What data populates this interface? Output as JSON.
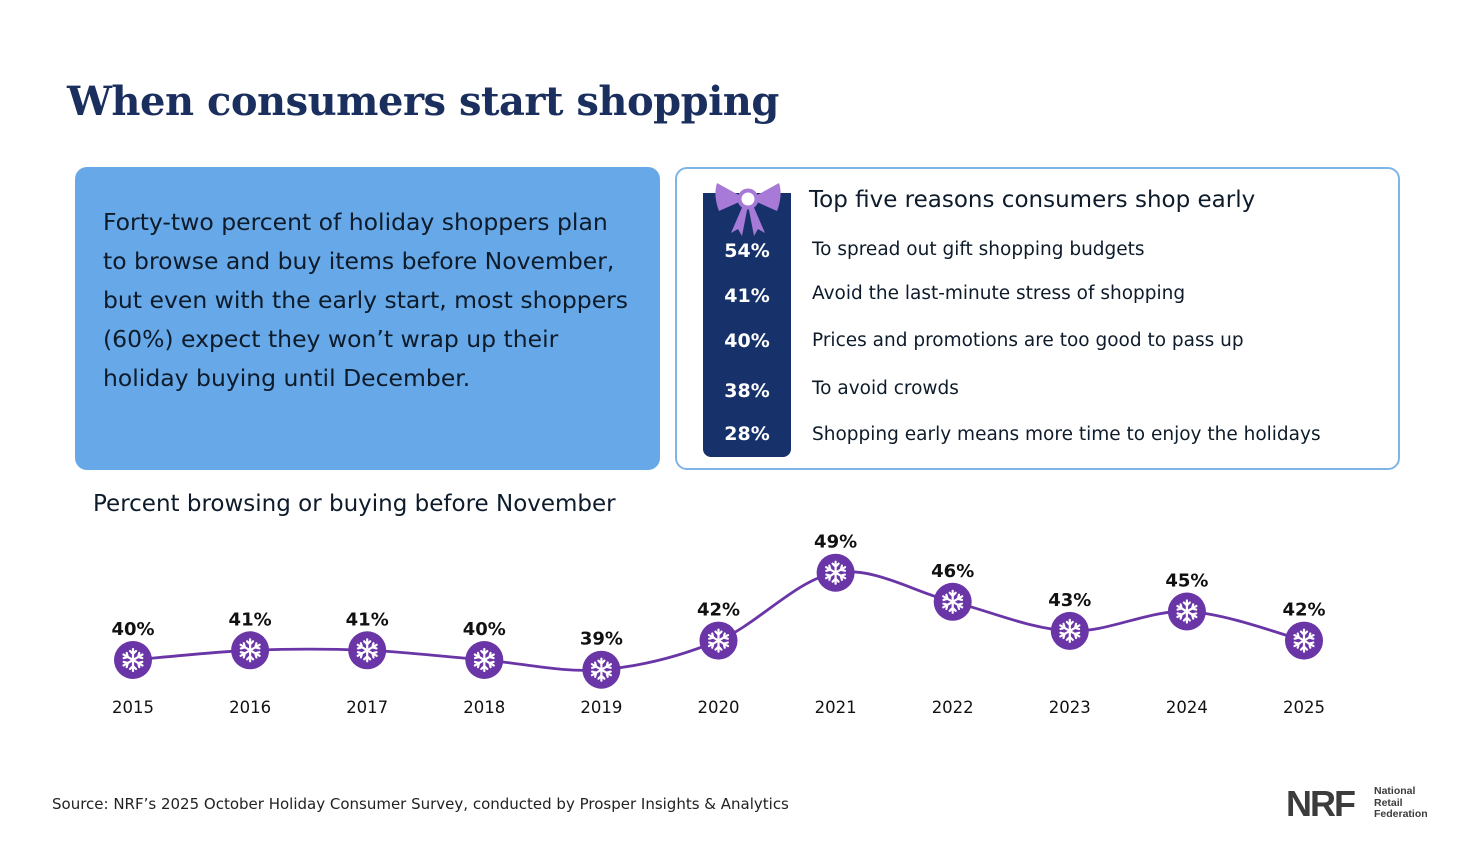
{
  "page": {
    "title": "When consumers start shopping",
    "callout_text": "Forty-two percent of holiday shoppers plan to browse and buy items before November, but even with the early start, most shoppers (60%) expect they won’t wrap up their holiday buying until December.",
    "source": "Source: NRF’s 2025 October Holiday Consumer Survey, conducted by Prosper Insights & Analytics"
  },
  "reasons": {
    "title": "Top five reasons consumers shop early",
    "items": [
      {
        "pct": "54%",
        "text": "To spread out gift shopping budgets"
      },
      {
        "pct": "41%",
        "text": "Avoid the last-minute stress of shopping"
      },
      {
        "pct": "40%",
        "text": "Prices and promotions are too good to pass up"
      },
      {
        "pct": "38%",
        "text": "To avoid crowds"
      },
      {
        "pct": "28%",
        "text": "Shopping early means more time to enjoy the holidays"
      }
    ]
  },
  "logo": {
    "mark": "NRF",
    "line1": "National",
    "line2": "Retail",
    "line3": "Federation"
  },
  "colors": {
    "title": "#1a2f5e",
    "callout_bg": "#66a8e8",
    "panel_border": "#7fb5e6",
    "pct_column": "#17326a",
    "line": "#6a35a6",
    "marker": "#6a35a6",
    "bow": "#a87ad8"
  },
  "chart_data": {
    "type": "line",
    "title": "Percent browsing or buying before November",
    "x": [
      "2015",
      "2016",
      "2017",
      "2018",
      "2019",
      "2020",
      "2021",
      "2022",
      "2023",
      "2024",
      "2025"
    ],
    "series": [
      {
        "values": [
          40,
          41,
          41,
          40,
          39,
          42,
          49,
          46,
          43,
          45,
          42
        ]
      }
    ],
    "data_labels": [
      "40%",
      "41%",
      "41%",
      "40%",
      "39%",
      "42%",
      "49%",
      "46%",
      "43%",
      "45%",
      "42%"
    ],
    "marker": "snowflake-icon",
    "smooth": true,
    "grid": false,
    "axes_visible": false
  }
}
